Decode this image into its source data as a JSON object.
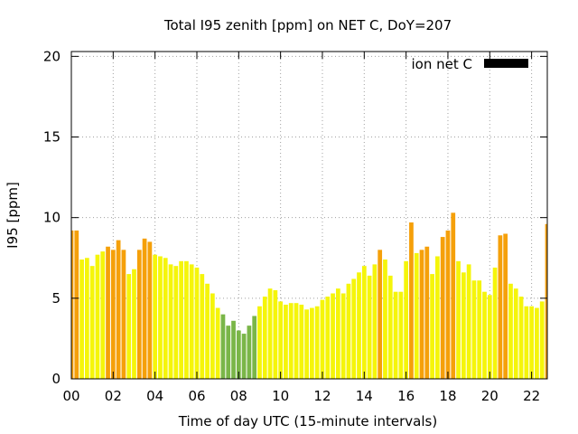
{
  "chart_data": {
    "type": "bar",
    "title": "Total I95 zenith [ppm] on NET C, DoY=207",
    "xlabel": "Time of day UTC (15-minute intervals)",
    "ylabel": "I95 [ppm]",
    "xlim": [
      0,
      22.75
    ],
    "ylim": [
      0,
      20.3
    ],
    "x_ticks": [
      {
        "value": 0,
        "label": "00"
      },
      {
        "value": 2,
        "label": "02"
      },
      {
        "value": 4,
        "label": "04"
      },
      {
        "value": 6,
        "label": "06"
      },
      {
        "value": 8,
        "label": "08"
      },
      {
        "value": 10,
        "label": "10"
      },
      {
        "value": 12,
        "label": "12"
      },
      {
        "value": 14,
        "label": "14"
      },
      {
        "value": 16,
        "label": "16"
      },
      {
        "value": 18,
        "label": "18"
      },
      {
        "value": 20,
        "label": "20"
      },
      {
        "value": 22,
        "label": "22"
      }
    ],
    "y_ticks": [
      0,
      5,
      10,
      15,
      20
    ],
    "grid": true,
    "legend": {
      "label": "ion net C",
      "color": "#000000",
      "position": "top-right"
    },
    "bar_interval_hours": 0.25,
    "colors": {
      "green": "#7ab648",
      "yellow": "#f5f50a",
      "orange": "#f5a00a"
    },
    "x": [
      0.0,
      0.25,
      0.5,
      0.75,
      1.0,
      1.25,
      1.5,
      1.75,
      2.0,
      2.25,
      2.5,
      2.75,
      3.0,
      3.25,
      3.5,
      3.75,
      4.0,
      4.25,
      4.5,
      4.75,
      5.0,
      5.25,
      5.5,
      5.75,
      6.0,
      6.25,
      6.5,
      6.75,
      7.0,
      7.25,
      7.5,
      7.75,
      8.0,
      8.25,
      8.5,
      8.75,
      9.0,
      9.25,
      9.5,
      9.75,
      10.0,
      10.25,
      10.5,
      10.75,
      11.0,
      11.25,
      11.5,
      11.75,
      12.0,
      12.25,
      12.5,
      12.75,
      13.0,
      13.25,
      13.5,
      13.75,
      14.0,
      14.25,
      14.5,
      14.75,
      15.0,
      15.25,
      15.5,
      15.75,
      16.0,
      16.25,
      16.5,
      16.75,
      17.0,
      17.25,
      17.5,
      17.75,
      18.0,
      18.25,
      18.5,
      18.75,
      19.0,
      19.25,
      19.5,
      19.75,
      20.0,
      20.25,
      20.5,
      20.75,
      21.0,
      21.25,
      21.5,
      21.75,
      22.0,
      22.25,
      22.5,
      22.75
    ],
    "values": [
      9.2,
      9.2,
      7.4,
      7.5,
      7.0,
      7.7,
      7.9,
      8.2,
      8.0,
      8.6,
      8.0,
      6.5,
      6.8,
      8.0,
      8.7,
      8.5,
      7.7,
      7.6,
      7.5,
      7.1,
      7.0,
      7.3,
      7.3,
      7.1,
      6.9,
      6.5,
      5.9,
      5.3,
      4.4,
      4.0,
      3.3,
      3.6,
      3.0,
      2.8,
      3.3,
      3.9,
      4.5,
      5.1,
      5.6,
      5.5,
      4.8,
      4.6,
      4.7,
      4.7,
      4.6,
      4.3,
      4.4,
      4.5,
      4.9,
      5.1,
      5.3,
      5.6,
      5.3,
      5.9,
      6.2,
      6.6,
      7.0,
      6.4,
      7.1,
      8.0,
      7.4,
      6.4,
      5.4,
      5.4,
      7.3,
      9.7,
      7.8,
      8.0,
      8.2,
      6.5,
      7.6,
      8.8,
      9.2,
      10.3,
      7.3,
      6.6,
      7.1,
      6.1,
      6.1,
      5.4,
      5.2,
      6.9,
      8.9,
      9.0,
      5.9,
      5.6,
      5.1,
      4.5,
      4.5,
      4.4,
      4.8,
      9.6
    ]
  }
}
